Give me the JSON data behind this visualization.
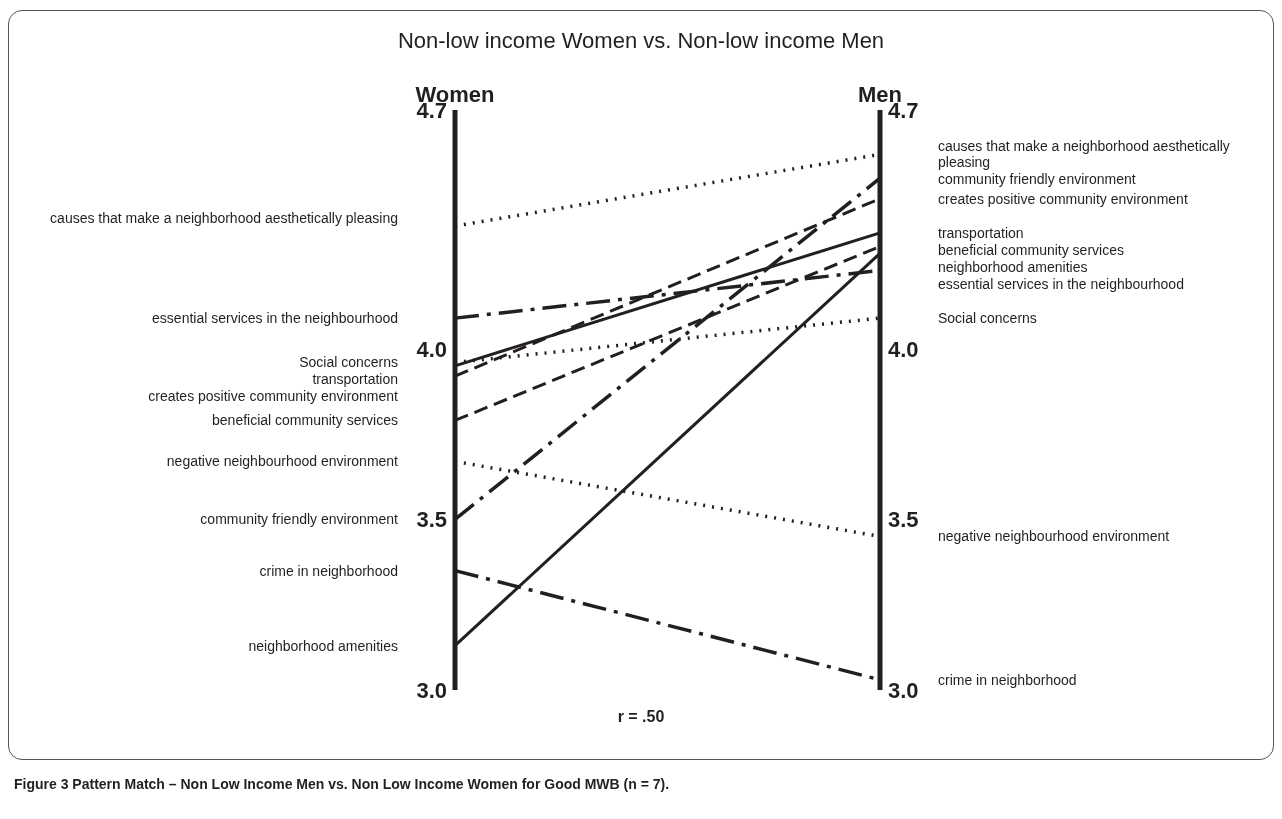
{
  "chart_data": {
    "type": "line",
    "title": "Non-low income Women vs. Non-low income Men",
    "categories": [
      "Women",
      "Men"
    ],
    "ylim": [
      3.0,
      4.7
    ],
    "yticks": [
      {
        "value": 3,
        "label": "3.0"
      },
      {
        "value": 3.5,
        "label": "3.5"
      },
      {
        "value": 4,
        "label": "4.0"
      },
      {
        "value": 4.7,
        "label": "4.7"
      }
    ],
    "y2lim": [
      3.0,
      4.7
    ],
    "y2ticks": [
      {
        "value": 3,
        "label": "3.0"
      },
      {
        "value": 3.5,
        "label": "3.5"
      },
      {
        "value": 4,
        "label": "4.0"
      },
      {
        "value": 4.7,
        "label": "4.7"
      }
    ],
    "legend": false,
    "marker": "none",
    "series": [
      {
        "name": "causes that make a neighborhood aesthetically pleasing",
        "color": "#231f20",
        "line_style": "dotted",
        "values": [
          4.36,
          4.57
        ]
      },
      {
        "name": "essential services in the neighbourhood",
        "color": "#231f20",
        "line_style": "dashdot",
        "values": [
          4.09,
          4.23
        ]
      },
      {
        "name": "Social concerns",
        "color": "#231f20",
        "line_style": "dotted",
        "values": [
          3.96,
          4.09
        ]
      },
      {
        "name": "transportation",
        "color": "#231f20",
        "line_style": "solid",
        "values": [
          3.95,
          4.34
        ]
      },
      {
        "name": "creates positive community environment",
        "color": "#231f20",
        "line_style": "dashed",
        "values": [
          3.92,
          4.44
        ]
      },
      {
        "name": "beneficial community services",
        "color": "#231f20",
        "line_style": "dashed",
        "values": [
          3.79,
          4.3
        ]
      },
      {
        "name": "negative neighbourhood environment",
        "color": "#231f20",
        "line_style": "dotted",
        "values": [
          3.67,
          3.45
        ]
      },
      {
        "name": "community friendly environment",
        "color": "#231f20",
        "line_style": "dashdot",
        "values": [
          3.5,
          4.5
        ]
      },
      {
        "name": "crime in neighborhood",
        "color": "#231f20",
        "line_style": "dashdot",
        "values": [
          3.35,
          3.03
        ]
      },
      {
        "name": "neighborhood amenities",
        "color": "#231f20",
        "line_style": "solid",
        "values": [
          3.13,
          4.28
        ]
      }
    ],
    "annotations": [
      "r = .50",
      "Figure 3 Pattern Match – Non Low Income Men vs. Non Low Income Women for Good MWB (n = 7)."
    ]
  }
}
